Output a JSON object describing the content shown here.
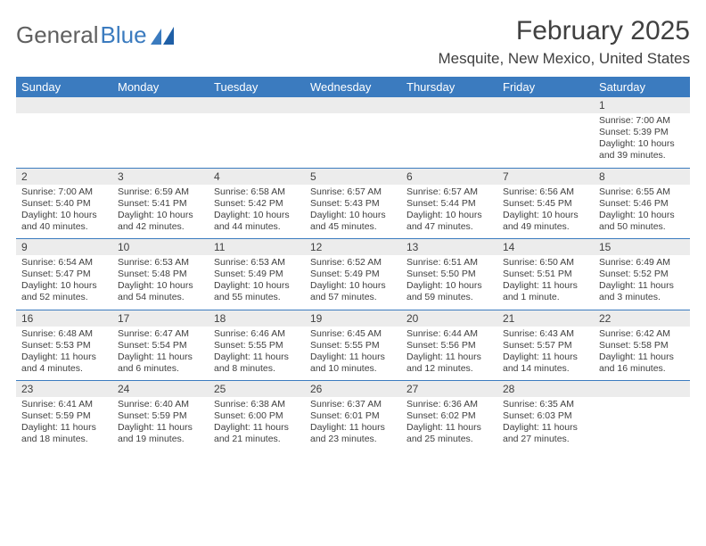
{
  "logo": {
    "text1": "General",
    "text2": "Blue"
  },
  "title": "February 2025",
  "location": "Mesquite, New Mexico, United States",
  "colors": {
    "header_bg": "#3b7bbf",
    "header_text": "#ffffff",
    "daynum_bg": "#ececec",
    "text": "#404040",
    "divider": "#3b7bbf",
    "logo_gray": "#606060",
    "logo_blue": "#3b7bbf"
  },
  "dayNames": [
    "Sunday",
    "Monday",
    "Tuesday",
    "Wednesday",
    "Thursday",
    "Friday",
    "Saturday"
  ],
  "weeks": [
    [
      {
        "n": "",
        "sr": "",
        "ss": "",
        "dl": ""
      },
      {
        "n": "",
        "sr": "",
        "ss": "",
        "dl": ""
      },
      {
        "n": "",
        "sr": "",
        "ss": "",
        "dl": ""
      },
      {
        "n": "",
        "sr": "",
        "ss": "",
        "dl": ""
      },
      {
        "n": "",
        "sr": "",
        "ss": "",
        "dl": ""
      },
      {
        "n": "",
        "sr": "",
        "ss": "",
        "dl": ""
      },
      {
        "n": "1",
        "sr": "Sunrise: 7:00 AM",
        "ss": "Sunset: 5:39 PM",
        "dl": "Daylight: 10 hours and 39 minutes."
      }
    ],
    [
      {
        "n": "2",
        "sr": "Sunrise: 7:00 AM",
        "ss": "Sunset: 5:40 PM",
        "dl": "Daylight: 10 hours and 40 minutes."
      },
      {
        "n": "3",
        "sr": "Sunrise: 6:59 AM",
        "ss": "Sunset: 5:41 PM",
        "dl": "Daylight: 10 hours and 42 minutes."
      },
      {
        "n": "4",
        "sr": "Sunrise: 6:58 AM",
        "ss": "Sunset: 5:42 PM",
        "dl": "Daylight: 10 hours and 44 minutes."
      },
      {
        "n": "5",
        "sr": "Sunrise: 6:57 AM",
        "ss": "Sunset: 5:43 PM",
        "dl": "Daylight: 10 hours and 45 minutes."
      },
      {
        "n": "6",
        "sr": "Sunrise: 6:57 AM",
        "ss": "Sunset: 5:44 PM",
        "dl": "Daylight: 10 hours and 47 minutes."
      },
      {
        "n": "7",
        "sr": "Sunrise: 6:56 AM",
        "ss": "Sunset: 5:45 PM",
        "dl": "Daylight: 10 hours and 49 minutes."
      },
      {
        "n": "8",
        "sr": "Sunrise: 6:55 AM",
        "ss": "Sunset: 5:46 PM",
        "dl": "Daylight: 10 hours and 50 minutes."
      }
    ],
    [
      {
        "n": "9",
        "sr": "Sunrise: 6:54 AM",
        "ss": "Sunset: 5:47 PM",
        "dl": "Daylight: 10 hours and 52 minutes."
      },
      {
        "n": "10",
        "sr": "Sunrise: 6:53 AM",
        "ss": "Sunset: 5:48 PM",
        "dl": "Daylight: 10 hours and 54 minutes."
      },
      {
        "n": "11",
        "sr": "Sunrise: 6:53 AM",
        "ss": "Sunset: 5:49 PM",
        "dl": "Daylight: 10 hours and 55 minutes."
      },
      {
        "n": "12",
        "sr": "Sunrise: 6:52 AM",
        "ss": "Sunset: 5:49 PM",
        "dl": "Daylight: 10 hours and 57 minutes."
      },
      {
        "n": "13",
        "sr": "Sunrise: 6:51 AM",
        "ss": "Sunset: 5:50 PM",
        "dl": "Daylight: 10 hours and 59 minutes."
      },
      {
        "n": "14",
        "sr": "Sunrise: 6:50 AM",
        "ss": "Sunset: 5:51 PM",
        "dl": "Daylight: 11 hours and 1 minute."
      },
      {
        "n": "15",
        "sr": "Sunrise: 6:49 AM",
        "ss": "Sunset: 5:52 PM",
        "dl": "Daylight: 11 hours and 3 minutes."
      }
    ],
    [
      {
        "n": "16",
        "sr": "Sunrise: 6:48 AM",
        "ss": "Sunset: 5:53 PM",
        "dl": "Daylight: 11 hours and 4 minutes."
      },
      {
        "n": "17",
        "sr": "Sunrise: 6:47 AM",
        "ss": "Sunset: 5:54 PM",
        "dl": "Daylight: 11 hours and 6 minutes."
      },
      {
        "n": "18",
        "sr": "Sunrise: 6:46 AM",
        "ss": "Sunset: 5:55 PM",
        "dl": "Daylight: 11 hours and 8 minutes."
      },
      {
        "n": "19",
        "sr": "Sunrise: 6:45 AM",
        "ss": "Sunset: 5:55 PM",
        "dl": "Daylight: 11 hours and 10 minutes."
      },
      {
        "n": "20",
        "sr": "Sunrise: 6:44 AM",
        "ss": "Sunset: 5:56 PM",
        "dl": "Daylight: 11 hours and 12 minutes."
      },
      {
        "n": "21",
        "sr": "Sunrise: 6:43 AM",
        "ss": "Sunset: 5:57 PM",
        "dl": "Daylight: 11 hours and 14 minutes."
      },
      {
        "n": "22",
        "sr": "Sunrise: 6:42 AM",
        "ss": "Sunset: 5:58 PM",
        "dl": "Daylight: 11 hours and 16 minutes."
      }
    ],
    [
      {
        "n": "23",
        "sr": "Sunrise: 6:41 AM",
        "ss": "Sunset: 5:59 PM",
        "dl": "Daylight: 11 hours and 18 minutes."
      },
      {
        "n": "24",
        "sr": "Sunrise: 6:40 AM",
        "ss": "Sunset: 5:59 PM",
        "dl": "Daylight: 11 hours and 19 minutes."
      },
      {
        "n": "25",
        "sr": "Sunrise: 6:38 AM",
        "ss": "Sunset: 6:00 PM",
        "dl": "Daylight: 11 hours and 21 minutes."
      },
      {
        "n": "26",
        "sr": "Sunrise: 6:37 AM",
        "ss": "Sunset: 6:01 PM",
        "dl": "Daylight: 11 hours and 23 minutes."
      },
      {
        "n": "27",
        "sr": "Sunrise: 6:36 AM",
        "ss": "Sunset: 6:02 PM",
        "dl": "Daylight: 11 hours and 25 minutes."
      },
      {
        "n": "28",
        "sr": "Sunrise: 6:35 AM",
        "ss": "Sunset: 6:03 PM",
        "dl": "Daylight: 11 hours and 27 minutes."
      },
      {
        "n": "",
        "sr": "",
        "ss": "",
        "dl": ""
      }
    ]
  ]
}
